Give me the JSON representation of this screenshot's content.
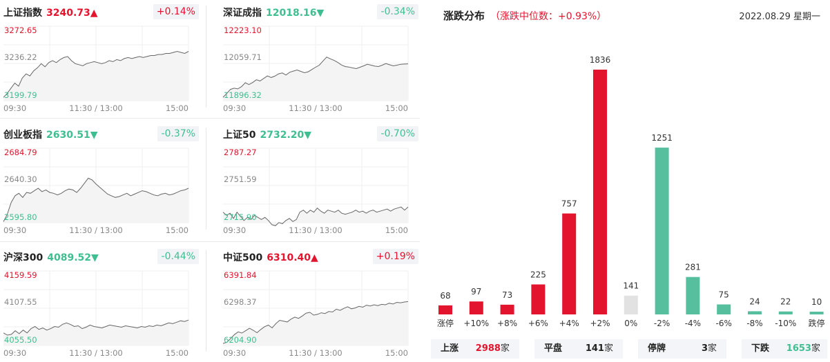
{
  "indices": [
    {
      "name": "上证指数",
      "price": "3240.73",
      "arrow": "▲",
      "change": "+0.14%",
      "trend": "up",
      "y_high": "3272.65",
      "y_mid": "3236.22",
      "y_low": "3199.79",
      "series": [
        3203,
        3207,
        3212,
        3217,
        3214,
        3222,
        3226,
        3224,
        3229,
        3232,
        3236,
        3233,
        3237,
        3239,
        3237,
        3240,
        3242,
        3243,
        3239,
        3236,
        3235,
        3234,
        3236,
        3237,
        3238,
        3237,
        3236,
        3237,
        3239,
        3238,
        3240,
        3239,
        3241,
        3242,
        3241,
        3242,
        3243,
        3242,
        3243,
        3244,
        3244,
        3245,
        3245,
        3246,
        3246,
        3247,
        3248,
        3247,
        3246,
        3248
      ]
    },
    {
      "name": "深证成指",
      "price": "12018.16",
      "arrow": "▼",
      "change": "-0.34%",
      "trend": "down",
      "y_high": "12223.10",
      "y_mid": "12059.71",
      "y_low": "11896.32",
      "series": [
        11911,
        11928,
        11946,
        11951,
        11948,
        11958,
        11975,
        11967,
        11976,
        11988,
        11983,
        11994,
        12005,
        11998,
        12004,
        12014,
        12018,
        12009,
        12021,
        12026,
        12031,
        12025,
        12019,
        12023,
        12033,
        12043,
        12052,
        12070,
        12088,
        12080,
        12073,
        12064,
        12053,
        12046,
        12044,
        12040,
        12037,
        12043,
        12049,
        12056,
        12052,
        12048,
        12046,
        12052,
        12059,
        12054,
        12049,
        12052,
        12056,
        12057,
        12058
      ]
    },
    {
      "name": "创业板指",
      "price": "2630.51",
      "arrow": "▼",
      "change": "-0.37%",
      "trend": "down",
      "y_high": "2684.79",
      "y_mid": "2640.30",
      "y_low": "2595.80",
      "series": [
        2597,
        2606,
        2620,
        2628,
        2631,
        2626,
        2632,
        2631,
        2634,
        2637,
        2633,
        2635,
        2632,
        2631,
        2629,
        2631,
        2634,
        2636,
        2635,
        2632,
        2637,
        2643,
        2649,
        2647,
        2642,
        2638,
        2634,
        2630,
        2628,
        2626,
        2627,
        2629,
        2631,
        2628,
        2630,
        2632,
        2634,
        2633,
        2631,
        2629,
        2628,
        2630,
        2631,
        2629,
        2630,
        2632,
        2634,
        2635,
        2637
      ]
    },
    {
      "name": "上证50",
      "price": "2732.20",
      "arrow": "▼",
      "change": "-0.70%",
      "trend": "down",
      "y_high": "2787.27",
      "y_mid": "2751.59",
      "y_low": "2715.90",
      "series": [
        2726,
        2723,
        2725,
        2720,
        2726,
        2722,
        2718,
        2721,
        2719,
        2723,
        2721,
        2719,
        2721,
        2718,
        2714,
        2713,
        2716,
        2715,
        2718,
        2720,
        2717,
        2719,
        2726,
        2728,
        2725,
        2728,
        2726,
        2730,
        2727,
        2725,
        2728,
        2727,
        2726,
        2728,
        2725,
        2724,
        2725,
        2726,
        2728,
        2726,
        2727,
        2725,
        2727,
        2728,
        2726,
        2727,
        2728,
        2729,
        2727,
        2729,
        2730,
        2731,
        2728,
        2731
      ]
    },
    {
      "name": "沪深300",
      "price": "4089.52",
      "arrow": "▼",
      "change": "-0.44%",
      "trend": "down",
      "y_high": "4159.59",
      "y_mid": "4107.55",
      "y_low": "4055.50",
      "series": [
        4073,
        4070,
        4071,
        4076,
        4072,
        4077,
        4073,
        4079,
        4082,
        4078,
        4080,
        4077,
        4079,
        4082,
        4081,
        4085,
        4087,
        4085,
        4082,
        4083,
        4079,
        4081,
        4084,
        4082,
        4081,
        4080,
        4082,
        4084,
        4083,
        4082,
        4081,
        4083,
        4082,
        4081,
        4080,
        4082,
        4081,
        4083,
        4082,
        4084,
        4083,
        4085,
        4087,
        4086,
        4088,
        4090,
        4089,
        4091
      ]
    },
    {
      "name": "中证500",
      "price": "6310.40",
      "arrow": "▲",
      "change": "+0.19%",
      "trend": "up",
      "y_high": "6391.84",
      "y_mid": "6298.37",
      "y_low": "6204.90",
      "series": [
        6210,
        6213,
        6222,
        6232,
        6239,
        6236,
        6242,
        6248,
        6243,
        6237,
        6245,
        6252,
        6256,
        6249,
        6260,
        6268,
        6266,
        6264,
        6271,
        6276,
        6273,
        6279,
        6286,
        6288,
        6281,
        6283,
        6287,
        6285,
        6290,
        6289,
        6296,
        6293,
        6298,
        6302,
        6297,
        6299,
        6303,
        6301,
        6306,
        6304,
        6307,
        6305,
        6308,
        6307,
        6311,
        6309,
        6313,
        6312,
        6314,
        6315
      ]
    }
  ],
  "time_labels": {
    "start": "09:30",
    "mid": "11:30 / 13:00",
    "end": "15:00"
  },
  "distribution": {
    "title": "涨跌分布",
    "median_text": "（涨跌中位数：+0.93%）",
    "date": "2022.08.29 星期一",
    "colors": {
      "up": "#e3142e",
      "flat": "#e2e2e2",
      "down": "#55bf9e"
    },
    "bars": [
      {
        "label": "涨停",
        "count": "68",
        "kind": "up"
      },
      {
        "label": "+10%",
        "count": "97",
        "kind": "up"
      },
      {
        "label": "+8%",
        "count": "73",
        "kind": "up"
      },
      {
        "label": "+6%",
        "count": "225",
        "kind": "up"
      },
      {
        "label": "+4%",
        "count": "757",
        "kind": "up"
      },
      {
        "label": "+2%",
        "count": "1836",
        "kind": "up"
      },
      {
        "label": "0%",
        "count": "141",
        "kind": "flat"
      },
      {
        "label": "-2%",
        "count": "1251",
        "kind": "down"
      },
      {
        "label": "-4%",
        "count": "281",
        "kind": "down"
      },
      {
        "label": "-6%",
        "count": "75",
        "kind": "down"
      },
      {
        "label": "-8%",
        "count": "24",
        "kind": "down"
      },
      {
        "label": "-10%",
        "count": "22",
        "kind": "down"
      },
      {
        "label": "跌停",
        "count": "10",
        "kind": "down"
      }
    ],
    "stats": {
      "up_label": "上涨",
      "up_value": "2988",
      "flat_label": "平盘",
      "flat_value": "141",
      "halt_label": "停牌",
      "halt_value": "3",
      "down_label": "下跌",
      "down_value": "1653",
      "unit": "家"
    }
  }
}
